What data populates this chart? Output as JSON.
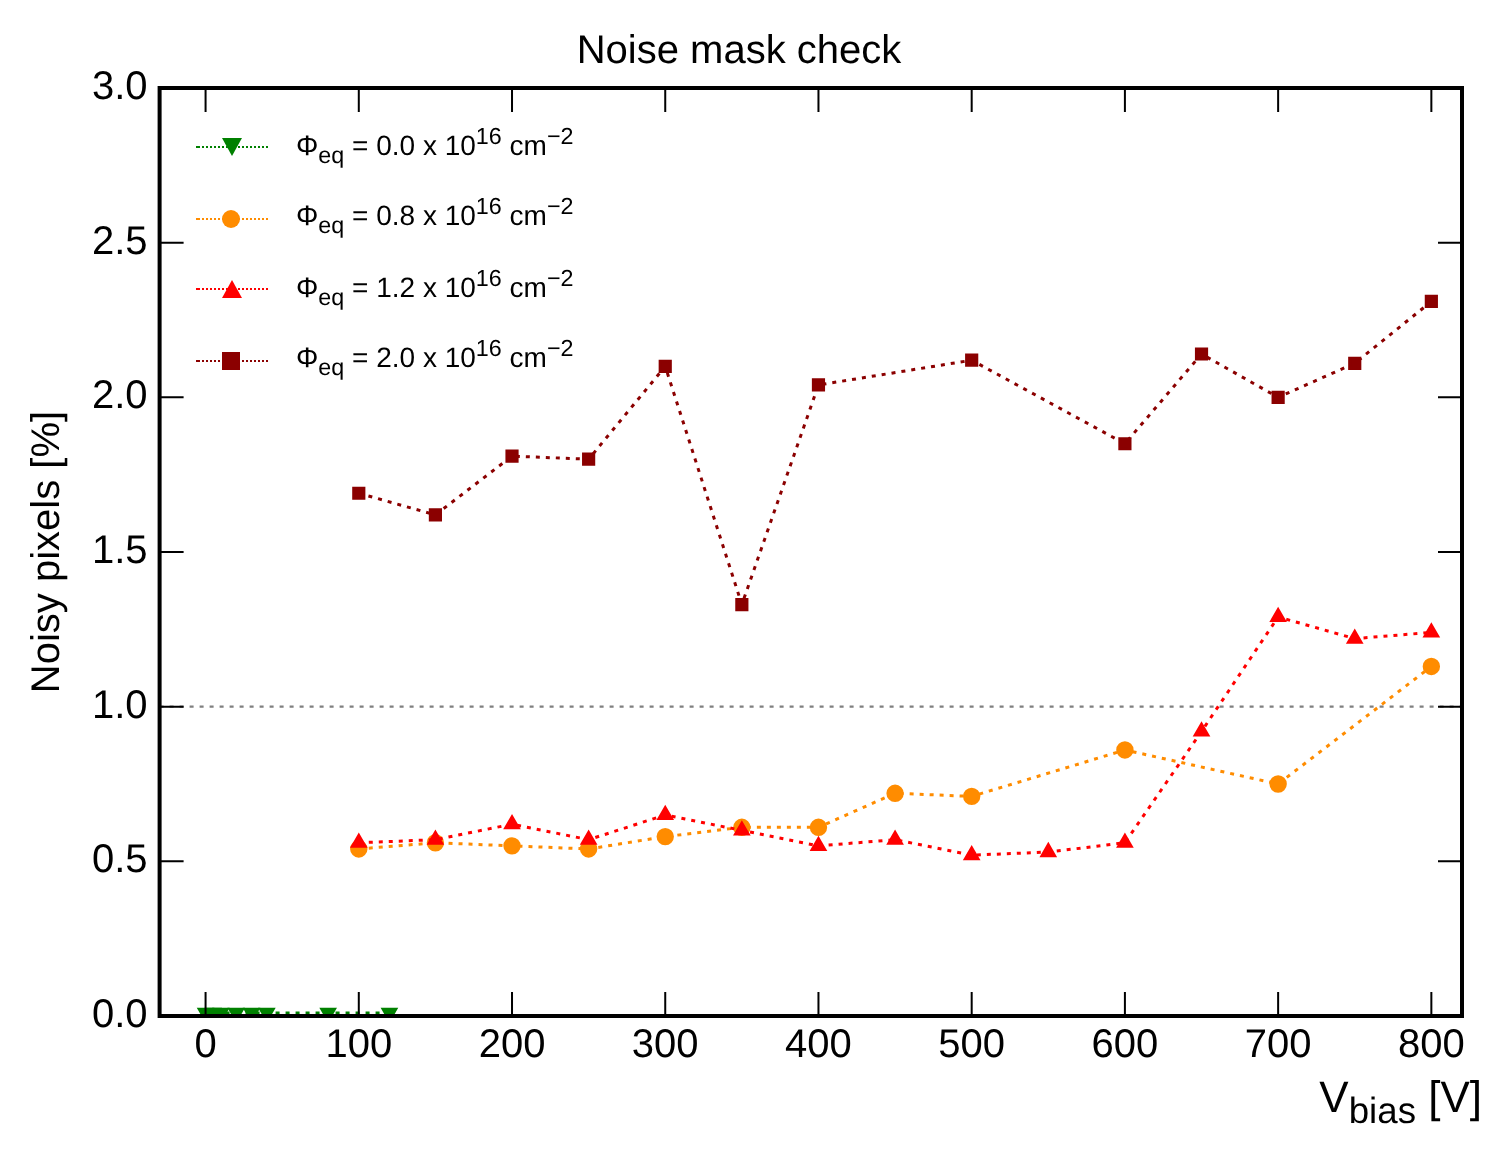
{
  "chart_data": {
    "type": "line",
    "title": "Noise mask check",
    "xlabel": "V$_{bias}$ [V]",
    "ylabel": "Noisy pixels [%]",
    "xlim": [
      -30,
      820
    ],
    "xticks": [
      0,
      100,
      200,
      300,
      400,
      500,
      600,
      700,
      800
    ],
    "ylim": [
      0,
      3
    ],
    "yticks": [
      {
        "value": 0,
        "label": "0.0"
      },
      {
        "value": 0.5,
        "label": "0.5"
      },
      {
        "value": 1,
        "label": "1.0"
      },
      {
        "value": 1.5,
        "label": "1.5"
      },
      {
        "value": 2,
        "label": "2.0"
      },
      {
        "value": 2.5,
        "label": "2.5"
      },
      {
        "value": 3,
        "label": "3.0"
      }
    ],
    "grid": false,
    "legend": "top left",
    "line_style": "dotted",
    "ref_lines": [
      {
        "axis": "y",
        "value": 1,
        "color": "#808080",
        "line_style": "dotted"
      }
    ],
    "series": [
      {
        "name": "Φ$_{eq}$ = 0.0 x 10$^{16}$ cm$^{−2}$",
        "color": "#008000",
        "marker": "triangle_down",
        "x": [
          0,
          5,
          10,
          20,
          30,
          40,
          80,
          120
        ],
        "values": [
          0.01,
          0.01,
          0.01,
          0.01,
          0.01,
          0.01,
          0.01,
          0.01
        ]
      },
      {
        "name": "Φ$_{eq}$ = 0.8 x 10$^{16}$ cm$^{−2}$",
        "color": "#ff8c00",
        "marker": "circle",
        "x": [
          100,
          150,
          200,
          250,
          300,
          350,
          400,
          450,
          500,
          600,
          700,
          800
        ],
        "values": [
          0.54,
          0.56,
          0.55,
          0.54,
          0.58,
          0.61,
          0.61,
          0.72,
          0.71,
          0.86,
          0.75,
          1.13
        ]
      },
      {
        "name": "Φ$_{eq}$ = 1.2 x 10$^{16}$ cm$^{−2}$",
        "color": "#ff0000",
        "marker": "triangle",
        "x": [
          100,
          150,
          200,
          250,
          300,
          350,
          400,
          450,
          500,
          550,
          600,
          650,
          700,
          750,
          800
        ],
        "values": [
          0.56,
          0.57,
          0.62,
          0.57,
          0.65,
          0.6,
          0.55,
          0.57,
          0.52,
          0.53,
          0.56,
          0.92,
          1.29,
          1.22,
          1.24
        ]
      },
      {
        "name": "Φ$_{eq}$ = 2.0 x 10$^{16}$ cm$^{−2}$",
        "color": "#8b0000",
        "marker": "square",
        "x": [
          100,
          150,
          200,
          250,
          300,
          350,
          400,
          500,
          600,
          650,
          700,
          750,
          800
        ],
        "values": [
          1.69,
          1.62,
          1.81,
          1.8,
          2.1,
          1.33,
          2.04,
          2.12,
          1.85,
          2.14,
          2.0,
          2.11,
          2.31
        ]
      }
    ]
  }
}
